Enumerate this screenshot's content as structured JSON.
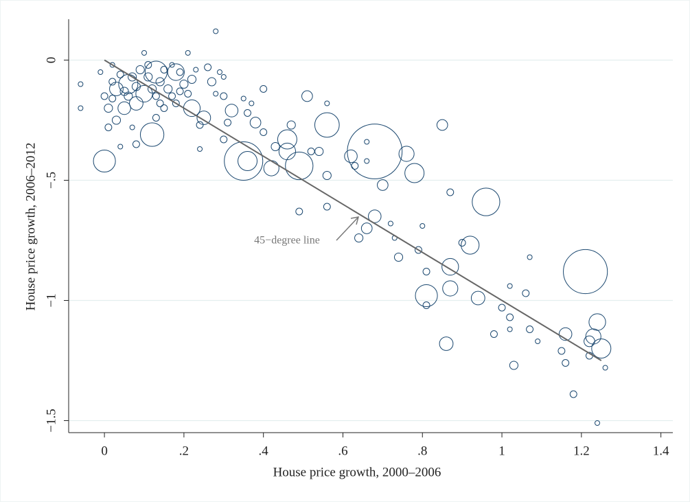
{
  "chart_data": {
    "type": "scatter",
    "x_label": "House price growth, 2000–2006",
    "y_label": "House price growth, 2006–2012",
    "annotation": "45−degree line",
    "xlim": [
      -0.09,
      1.43
    ],
    "ylim": [
      -1.55,
      0.17
    ],
    "xticks": [
      0,
      {
        "value": 0.2,
        "label": ".2"
      },
      {
        "value": 0.4,
        "label": ".4"
      },
      {
        "value": 0.6,
        "label": ".6"
      },
      {
        "value": 0.8,
        "label": ".8"
      },
      1,
      1.2,
      1.4
    ],
    "yticks": [
      0,
      {
        "value": -0.5,
        "label": "−.5"
      },
      {
        "value": -1,
        "label": "−1"
      },
      {
        "value": -1.5,
        "label": "−1.5"
      }
    ],
    "grid": true,
    "series": [
      {
        "color": "#1a476f",
        "x": [
          0.68,
          0.35,
          1.21,
          0.96,
          0.56,
          0.0,
          0.12,
          0.13,
          0.49,
          0.46,
          0.36,
          0.46,
          0.81,
          0.87,
          0.92,
          0.78,
          0.76,
          1.24,
          1.25,
          1.23,
          0.86,
          0.87,
          0.94,
          1.16,
          1.22,
          0.42,
          0.25,
          0.22,
          0.18,
          0.06,
          0.03,
          0.1,
          0.08,
          0.05,
          0.32,
          0.38,
          0.51,
          0.62,
          0.68,
          0.66,
          0.7,
          0.85,
          0.54,
          0.28,
          -0.06,
          -0.06,
          0.1,
          0.21,
          0.26,
          0.29,
          0.27,
          0.3,
          0.4,
          0.3,
          0.28,
          0.36,
          0.37,
          0.31,
          0.3,
          0.24,
          0.4,
          0.43,
          0.47,
          0.52,
          0.56,
          0.56,
          0.49,
          0.56,
          0.63,
          0.66,
          0.66,
          0.72,
          0.73,
          0.64,
          0.74,
          0.79,
          0.8,
          0.81,
          0.87,
          0.81,
          0.9,
          0.98,
          1.0,
          1.02,
          1.02,
          1.02,
          1.03,
          1.06,
          1.07,
          1.07,
          1.09,
          1.15,
          1.16,
          1.18,
          1.22,
          1.24,
          1.26,
          0.03,
          0.02,
          0.01,
          0.04,
          0.08,
          0.07,
          0.15,
          0.17,
          0.2,
          0.21,
          0.22,
          0.19,
          0.17,
          0.16,
          0.14,
          0.13,
          0.11,
          0.09,
          0.07,
          0.04,
          0.02,
          -0.01,
          0.0,
          0.01,
          0.02,
          0.06,
          0.12,
          0.14,
          0.15,
          0.19,
          0.08,
          0.11,
          0.13,
          0.05,
          0.18,
          0.24,
          0.35,
          0.23
        ],
        "y": [
          -0.38,
          -0.42,
          -0.88,
          -0.59,
          -0.27,
          -0.42,
          -0.31,
          -0.05,
          -0.44,
          -0.33,
          -0.42,
          -0.38,
          -0.98,
          -0.86,
          -0.77,
          -0.47,
          -0.39,
          -1.09,
          -1.2,
          -1.15,
          -1.18,
          -0.95,
          -0.99,
          -1.14,
          -1.17,
          -0.45,
          -0.24,
          -0.2,
          -0.05,
          -0.1,
          -0.12,
          -0.14,
          -0.18,
          -0.2,
          -0.21,
          -0.26,
          -0.15,
          -0.4,
          -0.65,
          -0.7,
          -0.52,
          -0.27,
          -0.38,
          0.12,
          -0.1,
          -0.2,
          0.03,
          0.03,
          -0.03,
          -0.05,
          -0.09,
          -0.07,
          -0.12,
          -0.15,
          -0.14,
          -0.22,
          -0.18,
          -0.26,
          -0.33,
          -0.37,
          -0.3,
          -0.36,
          -0.27,
          -0.38,
          -0.18,
          -0.48,
          -0.63,
          -0.61,
          -0.44,
          -0.34,
          -0.42,
          -0.68,
          -0.74,
          -0.74,
          -0.82,
          -0.79,
          -0.69,
          -1.02,
          -0.55,
          -0.88,
          -0.76,
          -1.14,
          -1.03,
          -0.94,
          -1.07,
          -1.12,
          -1.27,
          -0.97,
          -0.82,
          -1.12,
          -1.17,
          -1.21,
          -1.26,
          -1.39,
          -1.23,
          -1.51,
          -1.28,
          -0.25,
          -0.16,
          -0.28,
          -0.36,
          -0.35,
          -0.28,
          -0.2,
          -0.15,
          -0.1,
          -0.14,
          -0.08,
          -0.05,
          -0.02,
          -0.12,
          -0.18,
          -0.24,
          -0.07,
          -0.04,
          -0.07,
          -0.06,
          -0.09,
          -0.05,
          -0.15,
          -0.2,
          -0.02,
          -0.15,
          -0.12,
          -0.09,
          -0.04,
          -0.13,
          -0.11,
          -0.02,
          -0.15,
          -0.13,
          -0.18,
          -0.27,
          -0.16,
          -0.04
        ],
        "sizes": [
          130,
          64,
          84,
          33,
          26,
          21,
          24,
          21,
          33,
          16,
          16,
          12,
          21,
          12,
          14,
          16,
          10,
          12,
          16,
          10,
          8,
          10,
          8,
          7,
          5,
          10,
          8,
          12,
          12,
          16,
          8,
          12,
          8,
          7,
          7,
          5,
          5,
          7,
          7,
          5,
          5,
          5,
          3,
          1,
          1,
          1,
          1,
          1,
          2,
          1,
          3,
          1,
          2,
          2,
          1,
          2,
          1,
          2,
          2,
          1,
          2,
          3,
          3,
          2,
          1,
          3,
          2,
          2,
          2,
          1,
          1,
          1,
          1,
          3,
          3,
          2,
          1,
          2,
          2,
          2,
          2,
          2,
          2,
          1,
          2,
          1,
          3,
          2,
          1,
          2,
          1,
          2,
          2,
          2,
          2,
          1,
          1,
          3,
          2,
          2,
          1,
          2,
          1,
          2,
          2,
          3,
          2,
          3,
          2,
          1,
          3,
          2,
          2,
          3,
          3,
          3,
          2,
          2,
          1,
          2,
          3,
          1,
          3,
          3,
          3,
          2,
          2,
          3,
          2,
          2,
          3,
          2,
          2,
          1,
          1
        ]
      }
    ],
    "lines": [
      {
        "color": "#666666",
        "x": [
          0,
          1.25
        ],
        "y": [
          0,
          -1.25
        ]
      }
    ]
  }
}
